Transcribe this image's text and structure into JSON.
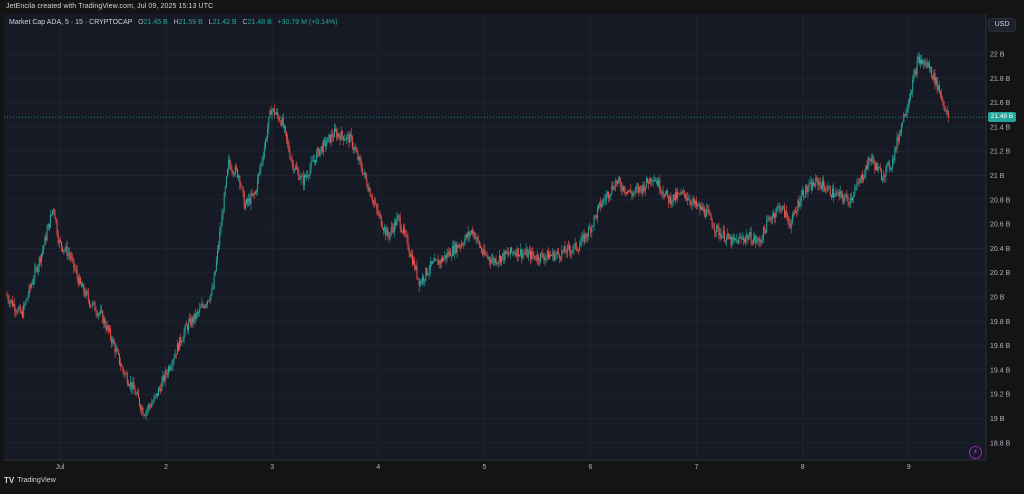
{
  "header": {
    "credit": "JetEncila created with TradingView.com, Jul 09, 2025 15:13 UTC"
  },
  "legend": {
    "symbol": "Market Cap ADA, 5 · 15 · CRYPTOCAP",
    "o_label": "O",
    "o_value": "21.45 B",
    "h_label": "H",
    "h_value": "21.59 B",
    "l_label": "L",
    "l_value": "21.42 B",
    "c_label": "C",
    "c_value": "21.48 B",
    "change": "+30.79 M (+0.14%)"
  },
  "price_axis": {
    "currency": "USD",
    "current_price_label": "21.48 B",
    "ticks": [
      "22 B",
      "21.8 B",
      "21.6 B",
      "21.4 B",
      "21.2 B",
      "21 B",
      "20.8 B",
      "20.6 B",
      "20.4 B",
      "20.2 B",
      "20 B",
      "19.8 B",
      "19.6 B",
      "19.4 B",
      "19.2 B",
      "19 B",
      "18.8 B"
    ]
  },
  "time_axis": {
    "ticks": [
      "Jul",
      "2",
      "3",
      "4",
      "5",
      "6",
      "7",
      "8",
      "9"
    ]
  },
  "footer": {
    "brand": "TradingView",
    "logo": "TV"
  },
  "colors": {
    "up": "#26a69a",
    "down": "#ef5350",
    "background": "#161a25",
    "grid": "#1f2330",
    "price_line": "#26a69a"
  },
  "chart_data": {
    "type": "candlestick",
    "ylim": [
      18.7,
      22.1
    ],
    "y_unit": "B USD",
    "current_price": 21.48,
    "x_range_days": [
      0.5,
      9.7
    ],
    "path": [
      [
        0.5,
        20.02
      ],
      [
        0.65,
        19.85
      ],
      [
        0.72,
        20.05
      ],
      [
        0.85,
        20.4
      ],
      [
        0.95,
        20.75
      ],
      [
        1.0,
        20.45
      ],
      [
        1.1,
        20.35
      ],
      [
        1.2,
        20.1
      ],
      [
        1.3,
        19.95
      ],
      [
        1.4,
        19.85
      ],
      [
        1.5,
        19.65
      ],
      [
        1.6,
        19.4
      ],
      [
        1.7,
        19.25
      ],
      [
        1.8,
        19.05
      ],
      [
        1.9,
        19.15
      ],
      [
        2.0,
        19.35
      ],
      [
        2.1,
        19.55
      ],
      [
        2.2,
        19.75
      ],
      [
        2.3,
        19.85
      ],
      [
        2.45,
        20.05
      ],
      [
        2.6,
        21.1
      ],
      [
        2.7,
        21.0
      ],
      [
        2.75,
        20.75
      ],
      [
        2.85,
        20.85
      ],
      [
        2.95,
        21.3
      ],
      [
        3.0,
        21.55
      ],
      [
        3.1,
        21.45
      ],
      [
        3.2,
        21.1
      ],
      [
        3.3,
        20.95
      ],
      [
        3.45,
        21.2
      ],
      [
        3.6,
        21.35
      ],
      [
        3.75,
        21.3
      ],
      [
        3.9,
        20.95
      ],
      [
        4.0,
        20.7
      ],
      [
        4.1,
        20.5
      ],
      [
        4.2,
        20.65
      ],
      [
        4.3,
        20.4
      ],
      [
        4.4,
        20.12
      ],
      [
        4.5,
        20.25
      ],
      [
        4.6,
        20.3
      ],
      [
        4.7,
        20.38
      ],
      [
        4.8,
        20.45
      ],
      [
        4.9,
        20.55
      ],
      [
        5.0,
        20.35
      ],
      [
        5.1,
        20.3
      ],
      [
        5.3,
        20.38
      ],
      [
        5.5,
        20.33
      ],
      [
        5.7,
        20.35
      ],
      [
        5.9,
        20.42
      ],
      [
        6.0,
        20.55
      ],
      [
        6.1,
        20.75
      ],
      [
        6.25,
        20.95
      ],
      [
        6.4,
        20.85
      ],
      [
        6.5,
        20.9
      ],
      [
        6.6,
        21.0
      ],
      [
        6.75,
        20.8
      ],
      [
        6.9,
        20.85
      ],
      [
        7.0,
        20.75
      ],
      [
        7.1,
        20.7
      ],
      [
        7.2,
        20.55
      ],
      [
        7.35,
        20.45
      ],
      [
        7.5,
        20.5
      ],
      [
        7.6,
        20.45
      ],
      [
        7.7,
        20.65
      ],
      [
        7.8,
        20.75
      ],
      [
        7.9,
        20.6
      ],
      [
        8.0,
        20.85
      ],
      [
        8.15,
        20.95
      ],
      [
        8.3,
        20.85
      ],
      [
        8.45,
        20.8
      ],
      [
        8.55,
        20.95
      ],
      [
        8.65,
        21.15
      ],
      [
        8.75,
        21.0
      ],
      [
        8.85,
        21.1
      ],
      [
        8.95,
        21.45
      ],
      [
        9.0,
        21.6
      ],
      [
        9.1,
        21.95
      ],
      [
        9.2,
        21.9
      ],
      [
        9.3,
        21.7
      ],
      [
        9.38,
        21.48
      ]
    ]
  }
}
